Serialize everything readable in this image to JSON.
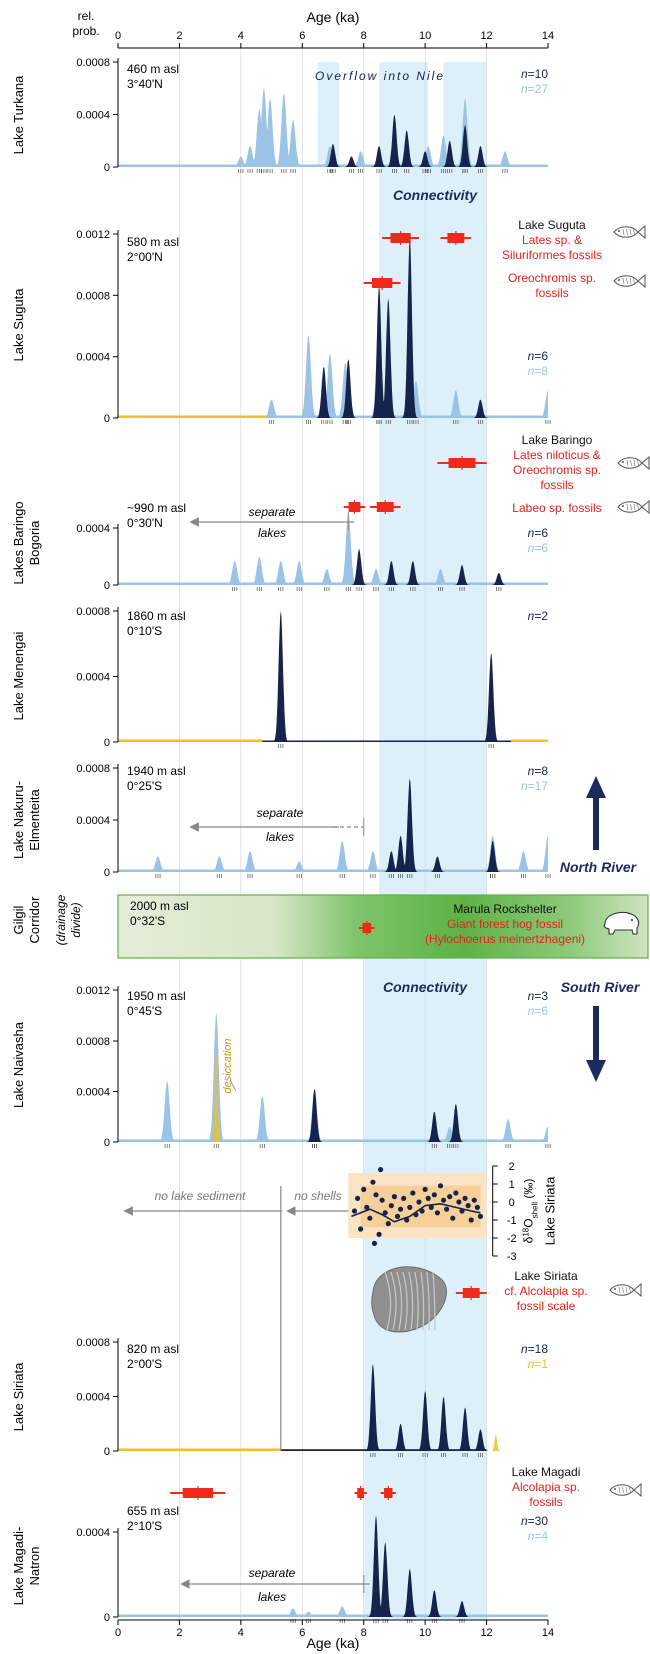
{
  "chart_data": {
    "type": "area",
    "x_axis": {
      "label": "Age (ka)",
      "range": [
        0,
        14
      ],
      "ticks": [
        "0",
        "2",
        "4",
        "6",
        "8",
        "10",
        "12",
        "14"
      ],
      "shown_top_and_bottom": true
    },
    "left_axis_header": [
      "rel.",
      "prob."
    ],
    "shaded_intervals_ka": [
      [
        6.5,
        7.2
      ],
      [
        8.5,
        12.0
      ],
      [
        8.0,
        12.0
      ]
    ],
    "shaded_interval_labels": [
      "Overflow into Nile",
      "Connectivity",
      "Connectivity"
    ],
    "colors": {
      "dark_series": "#16244d",
      "light_series": "#9bc3e6",
      "yellow_series": "#f2c021",
      "connectivity_band": "#ddeff8",
      "fossil_marker": "#ee2a1b",
      "fossil_text": "#e3231b",
      "arrow_text": "#1c2a5e",
      "gilgil_green": "#5eb245"
    },
    "panels": [
      {
        "name": "Lake Turkana",
        "info": [
          "460 m asl",
          "3°40'N"
        ],
        "ymax": 0.0008,
        "yticks": [
          "0.0008",
          "0.0004",
          "0"
        ],
        "n_labels": [
          "n=10",
          "n=27"
        ],
        "light_peaks": [
          [
            4.0,
            0.1
          ],
          [
            4.3,
            0.2
          ],
          [
            4.6,
            0.55
          ],
          [
            4.75,
            0.75
          ],
          [
            4.95,
            0.65
          ],
          [
            5.4,
            0.7
          ],
          [
            5.7,
            0.45
          ],
          [
            6.9,
            0.2
          ],
          [
            7.9,
            0.15
          ],
          [
            10.1,
            0.2
          ],
          [
            10.6,
            0.3
          ],
          [
            11.3,
            0.65
          ],
          [
            12.6,
            0.15
          ]
        ],
        "dark_peaks": [
          [
            7.0,
            0.22
          ],
          [
            7.6,
            0.1
          ],
          [
            8.5,
            0.2
          ],
          [
            9.0,
            0.5
          ],
          [
            9.4,
            0.35
          ],
          [
            10.0,
            0.15
          ],
          [
            10.8,
            0.25
          ],
          [
            11.3,
            0.4
          ],
          [
            11.8,
            0.2
          ]
        ],
        "baseline": "light"
      },
      {
        "name": "Lake Suguta",
        "info": [
          "580 m asl",
          "2°00'N"
        ],
        "ymax": 0.0012,
        "yticks": [
          "0.0012",
          "0.0008",
          "0.0004",
          "0"
        ],
        "n_labels": [
          "n=6",
          "n=8"
        ],
        "light_peaks": [
          [
            5.0,
            0.1
          ],
          [
            6.2,
            0.45
          ],
          [
            6.9,
            0.35
          ],
          [
            7.4,
            0.3
          ],
          [
            8.5,
            0.6
          ],
          [
            9.7,
            0.2
          ],
          [
            11.0,
            0.15
          ],
          [
            14.0,
            0.15
          ]
        ],
        "dark_peaks": [
          [
            6.7,
            0.28
          ],
          [
            7.5,
            0.32
          ],
          [
            8.5,
            0.72
          ],
          [
            8.8,
            0.65
          ],
          [
            9.5,
            0.98
          ],
          [
            11.8,
            0.1
          ]
        ],
        "baseline": "yellow-then-light"
      },
      {
        "name": "Lakes Baringo Bogoria",
        "info": [
          "~990 m asl",
          "0°30'N"
        ],
        "ymax": 0.0006,
        "yticks": [
          "0.0004",
          "0"
        ],
        "n_labels": [
          "n=6",
          "n=6"
        ],
        "annotation": "separate lakes",
        "light_peaks": [
          [
            3.8,
            0.3
          ],
          [
            4.6,
            0.35
          ],
          [
            5.3,
            0.3
          ],
          [
            5.9,
            0.3
          ],
          [
            6.8,
            0.2
          ],
          [
            7.5,
            0.9
          ],
          [
            8.4,
            0.2
          ],
          [
            10.5,
            0.2
          ]
        ],
        "dark_peaks": [
          [
            7.85,
            0.45
          ],
          [
            8.9,
            0.3
          ],
          [
            9.6,
            0.3
          ],
          [
            11.2,
            0.25
          ],
          [
            12.4,
            0.15
          ]
        ],
        "baseline": "light"
      },
      {
        "name": "Lake Menengai",
        "info": [
          "1860 m asl",
          "0°10'S"
        ],
        "ymax": 0.0009,
        "yticks": [
          "0.0008",
          "0.0004",
          "0"
        ],
        "n_labels": [
          "n=2"
        ],
        "light_peaks": [],
        "dark_peaks": [
          [
            5.3,
            1.0
          ],
          [
            12.15,
            0.68
          ]
        ],
        "baseline": "yellow-dark-yellow"
      },
      {
        "name": "Lake Nakuru-Elmenteita",
        "info": [
          "1940 m asl",
          "0°25'S"
        ],
        "ymax": 0.0008,
        "yticks": [
          "0.0008",
          "0.0004",
          "0"
        ],
        "n_labels": [
          "n=8",
          "n=17"
        ],
        "annotation": "separate lakes",
        "light_peaks": [
          [
            1.3,
            0.15
          ],
          [
            3.3,
            0.15
          ],
          [
            4.3,
            0.2
          ],
          [
            5.9,
            0.1
          ],
          [
            7.3,
            0.3
          ],
          [
            8.3,
            0.2
          ],
          [
            12.2,
            0.35
          ],
          [
            13.2,
            0.2
          ],
          [
            14.0,
            0.35
          ]
        ],
        "dark_peaks": [
          [
            8.9,
            0.2
          ],
          [
            9.2,
            0.35
          ],
          [
            9.5,
            0.9
          ],
          [
            10.4,
            0.15
          ],
          [
            12.2,
            0.3
          ]
        ],
        "baseline": "light"
      },
      {
        "name": "Gilgil Corridor",
        "subtitle": "(drainage divide)",
        "info": [
          "2000 m asl",
          "0°32'S"
        ]
      },
      {
        "name": "Lake Naivasha",
        "info": [
          "1950 m asl",
          "0°45'S"
        ],
        "ymax": 0.0012,
        "yticks": [
          "0.0012",
          "0.0008",
          "0.0004",
          "0"
        ],
        "n_labels": [
          "n=3",
          "n=6"
        ],
        "annotation": "desiccation",
        "light_peaks": [
          [
            1.6,
            0.4
          ],
          [
            3.2,
            0.85
          ],
          [
            4.7,
            0.3
          ],
          [
            6.4,
            0.35
          ],
          [
            10.8,
            0.1
          ],
          [
            12.7,
            0.15
          ],
          [
            14.0,
            0.1
          ]
        ],
        "dark_peaks": [
          [
            6.4,
            0.35
          ],
          [
            10.3,
            0.2
          ],
          [
            11.0,
            0.25
          ]
        ],
        "yellow_peaks": [
          [
            3.2,
            0.6
          ]
        ],
        "baseline": "light"
      },
      {
        "name": "Lake Siriata",
        "info": [
          "820 m asl",
          "2°00'S"
        ],
        "ymax": 0.0008,
        "yticks": [
          "0.0008",
          "0.0004",
          "0"
        ],
        "n_labels": [
          "n=18",
          "n=1"
        ],
        "annotations": [
          "no lake sediment",
          "no shells"
        ],
        "dark_peaks": [
          [
            8.3,
            0.8
          ],
          [
            9.2,
            0.25
          ],
          [
            10.0,
            0.55
          ],
          [
            10.6,
            0.5
          ],
          [
            11.3,
            0.4
          ],
          [
            11.8,
            0.2
          ]
        ],
        "yellow_peaks": [
          [
            12.3,
            0.15
          ]
        ],
        "baseline": "yellow-then-dark",
        "d18O_axis": {
          "label": "δ18Oshell (‰)",
          "ticks": [
            "2",
            "1",
            "0",
            "-1",
            "-2",
            "-3"
          ]
        },
        "d18O_points_ka": [
          [
            7.7,
            -0.5
          ],
          [
            7.8,
            0.2
          ],
          [
            7.9,
            -1.5
          ],
          [
            8.0,
            0.7
          ],
          [
            8.1,
            -0.3
          ],
          [
            8.2,
            -0.9
          ],
          [
            8.3,
            1.1
          ],
          [
            8.35,
            -2.3
          ],
          [
            8.4,
            0.4
          ],
          [
            8.5,
            -1.8
          ],
          [
            8.55,
            1.8
          ],
          [
            8.6,
            0.1
          ],
          [
            8.7,
            -0.6
          ],
          [
            8.8,
            -1.2
          ],
          [
            8.9,
            -0.2
          ],
          [
            9.0,
            0.3
          ],
          [
            9.1,
            -0.8
          ],
          [
            9.2,
            -0.4
          ],
          [
            9.3,
            0.2
          ],
          [
            9.4,
            -1.0
          ],
          [
            9.5,
            -0.3
          ],
          [
            9.6,
            0.5
          ],
          [
            9.7,
            -0.7
          ],
          [
            9.8,
            0.0
          ],
          [
            9.9,
            -0.5
          ],
          [
            10.0,
            0.7
          ],
          [
            10.1,
            0.2
          ],
          [
            10.2,
            -0.3
          ],
          [
            10.3,
            0.4
          ],
          [
            10.4,
            -0.6
          ],
          [
            10.5,
            0.9
          ],
          [
            10.6,
            0.1
          ],
          [
            10.7,
            -0.4
          ],
          [
            10.8,
            0.3
          ],
          [
            10.9,
            -0.9
          ],
          [
            11.0,
            0.5
          ],
          [
            11.1,
            0.0
          ],
          [
            11.2,
            -0.5
          ],
          [
            11.3,
            0.2
          ],
          [
            11.4,
            -0.2
          ],
          [
            11.5,
            -1.0
          ],
          [
            11.6,
            0.1
          ],
          [
            11.7,
            -0.3
          ],
          [
            11.8,
            -0.8
          ]
        ],
        "d18O_mean_ka": [
          [
            7.6,
            -0.8
          ],
          [
            8.2,
            -0.4
          ],
          [
            8.6,
            -0.7
          ],
          [
            9.0,
            -1.1
          ],
          [
            9.5,
            -0.8
          ],
          [
            10.0,
            -0.2
          ],
          [
            10.5,
            -0.1
          ],
          [
            11.0,
            -0.3
          ],
          [
            11.5,
            -0.5
          ],
          [
            11.8,
            -0.6
          ]
        ]
      },
      {
        "name": "Lake Magadi-Natron",
        "info": [
          "655 m asl",
          "2°10'S"
        ],
        "ymax": 0.0006,
        "yticks": [
          "0.0004",
          "0"
        ],
        "n_labels": [
          "n=30",
          "n=4"
        ],
        "annotation": "separate lakes",
        "light_peaks": [
          [
            5.7,
            0.08
          ],
          [
            6.2,
            0.05
          ],
          [
            7.3,
            0.1
          ]
        ],
        "dark_peaks": [
          [
            8.4,
            0.95
          ],
          [
            8.7,
            0.7
          ],
          [
            9.5,
            0.45
          ],
          [
            10.3,
            0.25
          ],
          [
            11.2,
            0.15
          ]
        ],
        "baseline": "light"
      }
    ],
    "fossils": [
      {
        "site": "Lake Suguta",
        "lines": [
          "Lake Suguta",
          "Lates sp. &",
          "Siluriformes fossils",
          "Oreochromis sp.",
          "fossils"
        ],
        "ages_ka": [
          [
            9.2,
            0.6
          ],
          [
            11.0,
            0.5
          ],
          [
            8.6,
            0.6
          ]
        ]
      },
      {
        "site": "Lake Baringo",
        "lines": [
          "Lake Baringo",
          "Lates niloticus &",
          "Oreochromis sp.",
          "fossils",
          "Labeo sp. fossils"
        ],
        "ages_ka": [
          [
            11.2,
            0.8
          ],
          [
            7.7,
            0.35
          ],
          [
            8.7,
            0.5
          ]
        ]
      },
      {
        "site": "Marula Rockshelter",
        "lines": [
          "Marula Rockshelter",
          "Giant forest hog fossil",
          "(Hylochoerus meinertzhageni)"
        ],
        "ages_ka": [
          [
            8.1,
            0.25
          ]
        ]
      },
      {
        "site": "Lake Siriata",
        "lines": [
          "Lake Siriata",
          "cf. Alcolapia sp.",
          "fossil scale"
        ],
        "ages_ka": [
          [
            11.5,
            0.5
          ]
        ]
      },
      {
        "site": "Lake Magadi",
        "lines": [
          "Lake Magadi",
          "Alcolapia sp.",
          "fossils"
        ],
        "ages_ka": [
          [
            2.6,
            0.9
          ],
          [
            7.9,
            0.2
          ],
          [
            8.8,
            0.25
          ]
        ]
      }
    ],
    "arrows": [
      "North River",
      "South River"
    ]
  }
}
